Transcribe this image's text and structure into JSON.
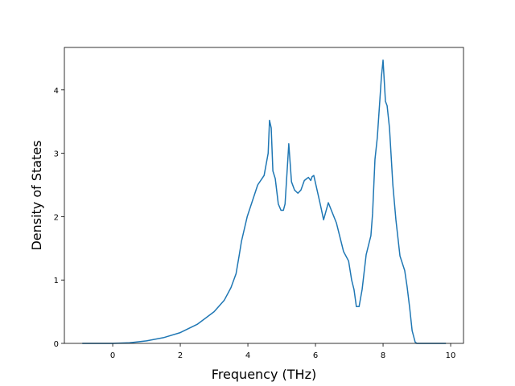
{
  "chart_data": {
    "type": "line",
    "x_label": "Frequency (THz)",
    "y_label": "Density of States",
    "xlim": [
      -1.43,
      10.38
    ],
    "ylim": [
      0,
      4.67
    ],
    "xticks": [
      0,
      2,
      4,
      6,
      8,
      10
    ],
    "yticks": [
      0,
      1,
      2,
      3,
      4
    ],
    "series": [
      {
        "color": "#1f77b4",
        "x": [
          -0.9,
          0,
          0.5,
          1,
          1.5,
          2,
          2.5,
          3,
          3.3,
          3.5,
          3.65,
          3.74,
          3.81,
          3.98,
          4.29,
          4.48,
          4.6,
          4.64,
          4.69,
          4.74,
          4.81,
          4.9,
          4.98,
          5.05,
          5.1,
          5.17,
          5.21,
          5.29,
          5.38,
          5.48,
          5.57,
          5.67,
          5.79,
          5.86,
          5.9,
          5.95,
          6.14,
          6.24,
          6.38,
          6.62,
          6.83,
          6.98,
          7.07,
          7.14,
          7.21,
          7.29,
          7.38,
          7.5,
          7.64,
          7.69,
          7.76,
          7.83,
          7.9,
          7.95,
          8.0,
          8.07,
          8.12,
          8.19,
          8.29,
          8.38,
          8.5,
          8.64,
          8.71,
          8.79,
          8.86,
          8.95,
          9.0,
          9.86
        ],
        "values": [
          0,
          0,
          0.01,
          0.04,
          0.09,
          0.17,
          0.3,
          0.5,
          0.68,
          0.88,
          1.1,
          1.38,
          1.61,
          2.0,
          2.5,
          2.65,
          3.0,
          3.52,
          3.4,
          2.72,
          2.6,
          2.2,
          2.1,
          2.1,
          2.2,
          2.8,
          3.15,
          2.55,
          2.42,
          2.37,
          2.42,
          2.57,
          2.62,
          2.57,
          2.63,
          2.65,
          2.2,
          1.95,
          2.22,
          1.9,
          1.45,
          1.3,
          1.0,
          0.85,
          0.58,
          0.58,
          0.85,
          1.4,
          1.7,
          2.05,
          2.9,
          3.25,
          3.8,
          4.2,
          4.47,
          3.82,
          3.75,
          3.4,
          2.5,
          1.95,
          1.38,
          1.15,
          0.9,
          0.55,
          0.2,
          0.02,
          0,
          0
        ]
      }
    ]
  }
}
